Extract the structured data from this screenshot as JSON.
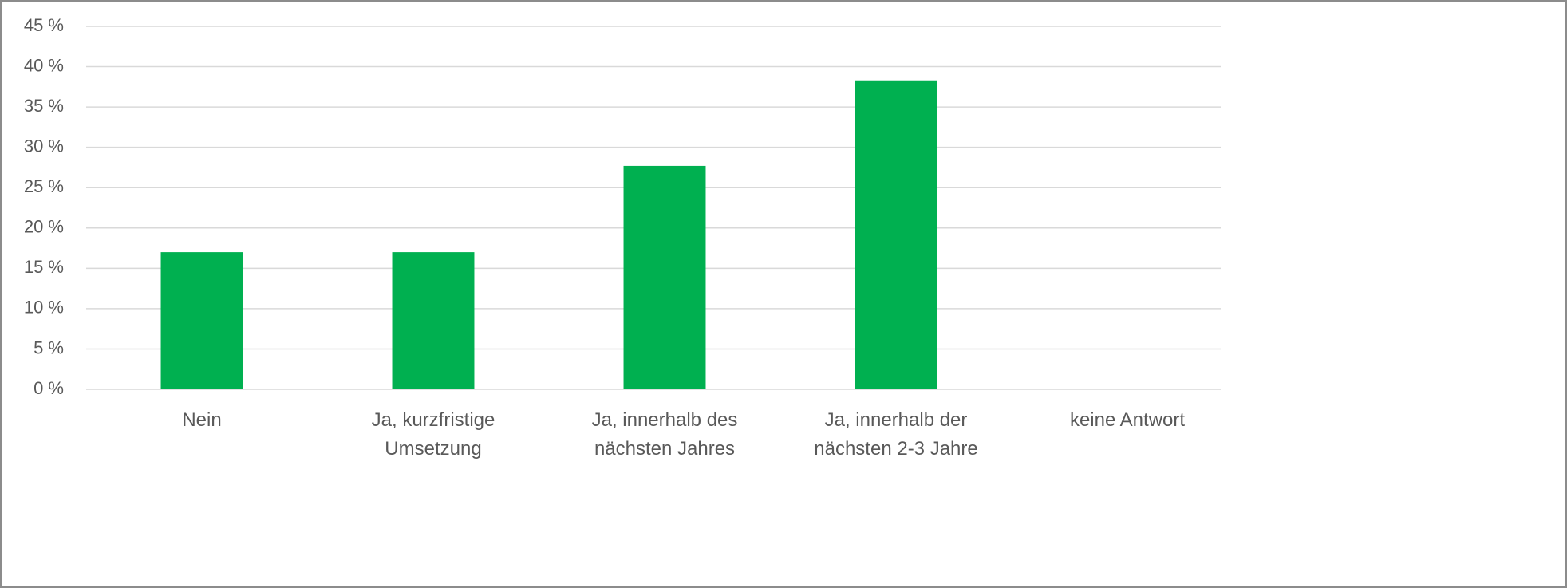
{
  "chart_data": {
    "type": "bar",
    "categories": [
      "Nein",
      "Ja, kurzfristige Umsetzung",
      "Ja, innerhalb des nächsten Jahres",
      "Ja, innerhalb der nächsten 2-3 Jahre",
      "keine Antwort"
    ],
    "values": [
      17,
      17,
      27.7,
      38.3,
      0
    ],
    "color": "#00b050",
    "ylim": [
      0,
      45
    ],
    "yticks": [
      {
        "value": 0,
        "label": "0 %"
      },
      {
        "value": 5,
        "label": "5 %"
      },
      {
        "value": 10,
        "label": "10 %"
      },
      {
        "value": 15,
        "label": "15 %"
      },
      {
        "value": 20,
        "label": "20 %"
      },
      {
        "value": 25,
        "label": "25 %"
      },
      {
        "value": 30,
        "label": "30 %"
      },
      {
        "value": 35,
        "label": "35 %"
      },
      {
        "value": 40,
        "label": "40 %"
      },
      {
        "value": 45,
        "label": "45 %"
      }
    ],
    "grid": true
  }
}
